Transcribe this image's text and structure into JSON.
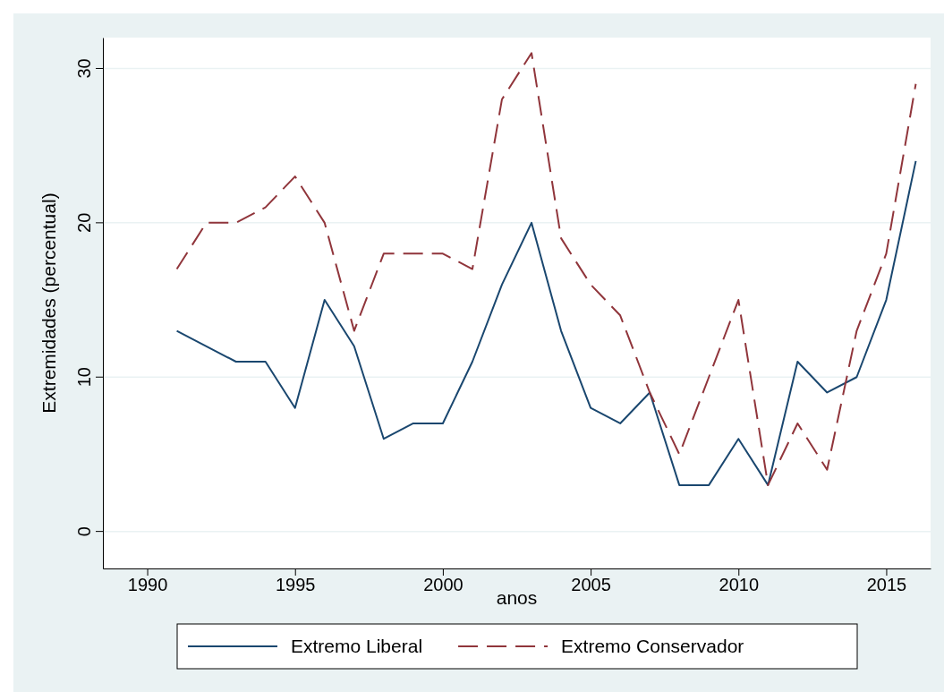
{
  "chart_data": {
    "type": "line",
    "xlabel": "anos",
    "ylabel": "Extremidades (percentual)",
    "x": [
      1991,
      1992,
      1993,
      1994,
      1995,
      1996,
      1997,
      1998,
      1999,
      2000,
      2001,
      2002,
      2003,
      2004,
      2005,
      2006,
      2007,
      2008,
      2009,
      2010,
      2011,
      2012,
      2013,
      2014,
      2015,
      2016
    ],
    "series": [
      {
        "name": "Extremo Liberal",
        "color": "#1a476f",
        "line_style": "solid",
        "values": [
          13,
          12,
          11,
          11,
          8,
          15,
          12,
          6,
          7,
          7,
          11,
          16,
          20,
          13,
          8,
          7,
          9,
          3,
          3,
          6,
          3,
          11,
          9,
          10,
          15,
          24
        ]
      },
      {
        "name": "Extremo Conservador",
        "color": "#90353b",
        "line_style": "dashed",
        "values": [
          17,
          20,
          20,
          21,
          23,
          20,
          13,
          18,
          18,
          18,
          17,
          28,
          31,
          19,
          16,
          14,
          9,
          5,
          10,
          15,
          3,
          7,
          4,
          13,
          18,
          29
        ]
      }
    ],
    "xlim": [
      1988.5,
      2016.5
    ],
    "xticks": [
      1990,
      1995,
      2000,
      2005,
      2010,
      2015
    ],
    "ylim": [
      -2.4,
      32
    ],
    "yticks": [
      0,
      10,
      20,
      30
    ],
    "grid": "y",
    "legend": "bottom"
  }
}
